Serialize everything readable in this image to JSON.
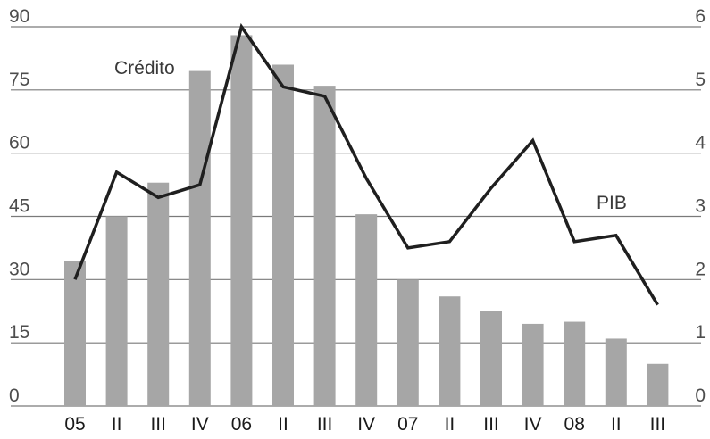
{
  "chart_data": {
    "type": "bar",
    "categories": [
      "05",
      "II",
      "III",
      "IV",
      "06",
      "II",
      "III",
      "IV",
      "07",
      "II",
      "III",
      "IV",
      "08",
      "II",
      "III"
    ],
    "series": [
      {
        "name": "Crédito",
        "type": "bar",
        "axis": "left",
        "color": "#a6a6a6",
        "values": [
          34.5,
          45,
          53,
          79.5,
          88,
          81,
          76,
          45.5,
          30,
          26,
          22.5,
          19.5,
          20,
          16,
          10
        ]
      },
      {
        "name": "PIB",
        "type": "line",
        "axis": "right",
        "color": "#1f1f1f",
        "values": [
          2.0,
          3.7,
          3.3,
          3.5,
          6.0,
          5.05,
          4.9,
          3.6,
          2.5,
          2.6,
          3.45,
          4.2,
          2.6,
          2.7,
          1.6
        ]
      }
    ],
    "ylim_left": [
      0,
      90
    ],
    "yticks_left": [
      "0",
      "15",
      "30",
      "45",
      "60",
      "75",
      "90"
    ],
    "ylim_right": [
      0,
      6
    ],
    "yticks_right": [
      "0",
      "1",
      "2",
      "3",
      "4",
      "5",
      "6"
    ],
    "grid": true,
    "annotations": [
      "Crédito",
      "PIB"
    ]
  }
}
